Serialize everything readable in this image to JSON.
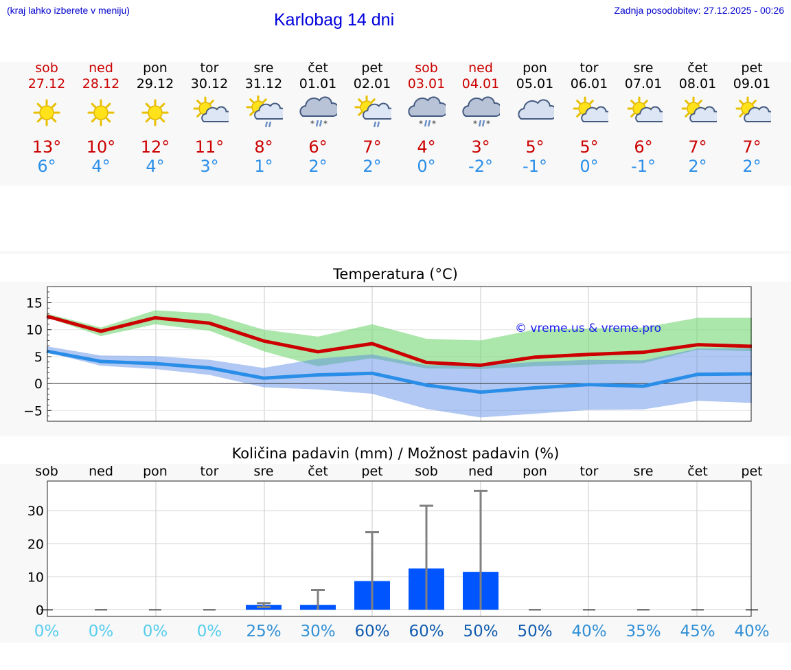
{
  "header": {
    "menu_hint": "(kraj lahko izberete v meniju)",
    "title": "Karlobag 14 dni",
    "updated": "Zadnja posodobitev: 27.12.2025 - 00:26"
  },
  "colors": {
    "tmax": "#cc0000",
    "tmin": "#2a8ee8",
    "weekend": "#cc0000",
    "bar": "#0055ff"
  },
  "days": [
    {
      "name": "sob",
      "date": "27.12",
      "weekend": true,
      "icon": "sun-icon",
      "tmax": "13°",
      "tmin": "6°"
    },
    {
      "name": "ned",
      "date": "28.12",
      "weekend": true,
      "icon": "sun-icon",
      "tmax": "10°",
      "tmin": "4°"
    },
    {
      "name": "pon",
      "date": "29.12",
      "weekend": false,
      "icon": "sun-icon",
      "tmax": "12°",
      "tmin": "4°"
    },
    {
      "name": "tor",
      "date": "30.12",
      "weekend": false,
      "icon": "sun-cloud-icon",
      "tmax": "11°",
      "tmin": "3°"
    },
    {
      "name": "sre",
      "date": "31.12",
      "weekend": false,
      "icon": "sun-cloud-rain-icon",
      "tmax": "8°",
      "tmin": "1°"
    },
    {
      "name": "čet",
      "date": "01.01",
      "weekend": false,
      "icon": "cloud-sleet-icon",
      "tmax": "6°",
      "tmin": "2°"
    },
    {
      "name": "pet",
      "date": "02.01",
      "weekend": false,
      "icon": "sun-cloud-rain-icon",
      "tmax": "7°",
      "tmin": "2°"
    },
    {
      "name": "sob",
      "date": "03.01",
      "weekend": true,
      "icon": "cloud-sleet-icon",
      "tmax": "4°",
      "tmin": "0°"
    },
    {
      "name": "ned",
      "date": "04.01",
      "weekend": true,
      "icon": "cloud-sleet-icon",
      "tmax": "3°",
      "tmin": "-2°"
    },
    {
      "name": "pon",
      "date": "05.01",
      "weekend": false,
      "icon": "cloud-icon",
      "tmax": "5°",
      "tmin": "-1°"
    },
    {
      "name": "tor",
      "date": "06.01",
      "weekend": false,
      "icon": "sun-cloud-icon",
      "tmax": "5°",
      "tmin": "0°"
    },
    {
      "name": "sre",
      "date": "07.01",
      "weekend": false,
      "icon": "sun-cloud-icon",
      "tmax": "6°",
      "tmin": "-1°"
    },
    {
      "name": "čet",
      "date": "08.01",
      "weekend": false,
      "icon": "sun-cloud-icon",
      "tmax": "7°",
      "tmin": "2°"
    },
    {
      "name": "pet",
      "date": "09.01",
      "weekend": false,
      "icon": "sun-cloud-icon",
      "tmax": "7°",
      "tmin": "2°"
    }
  ],
  "chart_data": [
    {
      "type": "line",
      "title": "Temperatura (°C)",
      "ylim": [
        -7,
        18
      ],
      "yticks": [
        "15",
        "10",
        "5",
        "0",
        "−5"
      ],
      "ytick_values": [
        15,
        10,
        5,
        0,
        -5
      ],
      "watermark": "© vreme.us & vreme.pro",
      "series": [
        {
          "name": "max",
          "values": [
            12.5,
            9.7,
            12.2,
            11.2,
            7.9,
            5.9,
            7.4,
            3.9,
            3.4,
            4.9,
            5.4,
            5.8,
            7.2,
            6.9
          ],
          "band_low": [
            12.3,
            8.8,
            11.0,
            9.8,
            6.0,
            3.2,
            4.7,
            2.8,
            2.7,
            3.2,
            3.5,
            3.8,
            6.3,
            6.0
          ],
          "band_high": [
            13.0,
            10.4,
            13.6,
            13.0,
            10.0,
            8.7,
            11.0,
            8.3,
            8.0,
            10.0,
            10.2,
            10.4,
            12.2,
            12.2
          ]
        },
        {
          "name": "min",
          "values": [
            6.0,
            4.1,
            3.7,
            2.9,
            1.0,
            1.6,
            1.9,
            -0.3,
            -1.6,
            -0.8,
            -0.2,
            -0.5,
            1.7,
            1.8
          ],
          "band_low": [
            5.8,
            3.3,
            2.7,
            1.6,
            -0.7,
            -1.1,
            -1.9,
            -4.7,
            -6.3,
            -5.6,
            -4.9,
            -4.8,
            -3.2,
            -3.6
          ],
          "band_high": [
            6.9,
            5.2,
            5.1,
            4.4,
            2.9,
            4.6,
            5.4,
            3.4,
            3.4,
            4.0,
            4.4,
            4.3,
            6.5,
            6.5
          ]
        }
      ]
    },
    {
      "type": "bar",
      "title": "Količina padavin (mm) / Možnost padavin (%)",
      "categories": [
        "sob",
        "ned",
        "pon",
        "tor",
        "sre",
        "čet",
        "pet",
        "sob",
        "ned",
        "pon",
        "tor",
        "sre",
        "čet",
        "pet"
      ],
      "ylim": [
        -2,
        39
      ],
      "yticks": [
        "30",
        "20",
        "10",
        "0"
      ],
      "ytick_values": [
        30,
        20,
        10,
        0
      ],
      "values": [
        0,
        0,
        0,
        0,
        1.5,
        1.5,
        8.7,
        12.5,
        11.5,
        0,
        0,
        0,
        0,
        0
      ],
      "err_high": [
        0,
        0,
        0,
        0,
        2.0,
        6.0,
        23.5,
        31.5,
        36.0,
        0,
        0,
        0,
        0,
        0
      ],
      "err_low": [
        0,
        0,
        0,
        0,
        0.8,
        0,
        0,
        0,
        0,
        0,
        0,
        0,
        0,
        0
      ],
      "probability": [
        "0%",
        "0%",
        "0%",
        "0%",
        "25%",
        "30%",
        "60%",
        "60%",
        "50%",
        "50%",
        "40%",
        "35%",
        "45%",
        "40%"
      ],
      "probability_colors": [
        "#55ccee",
        "#55ccee",
        "#55ccee",
        "#55ccee",
        "#2f8fd6",
        "#2f8fd6",
        "#0f5bb0",
        "#0f5bb0",
        "#0f5bb0",
        "#0f5bb0",
        "#2f8fd6",
        "#2f8fd6",
        "#2f8fd6",
        "#2f8fd6"
      ]
    }
  ]
}
